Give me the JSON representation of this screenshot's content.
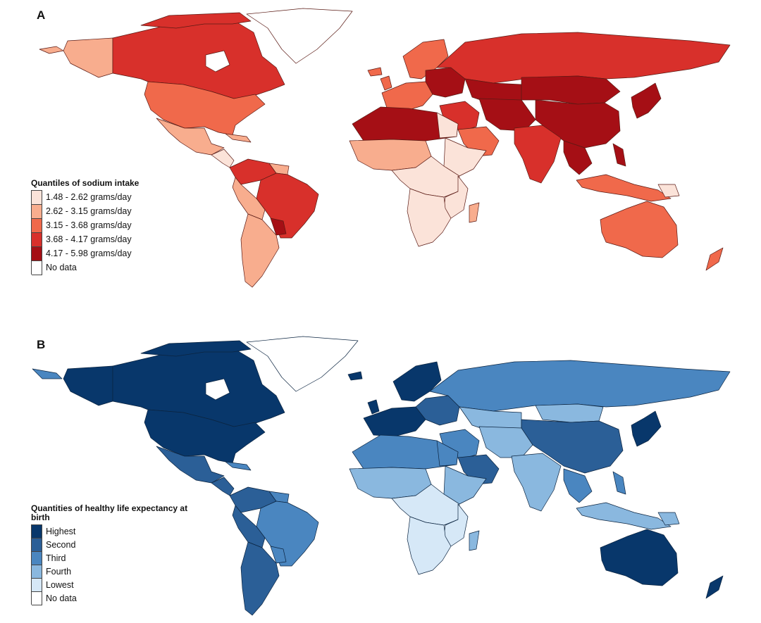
{
  "panel_a": {
    "label": "A",
    "legend": {
      "title": "Quantiles of sodium intake",
      "items": [
        {
          "label": "1.48 - 2.62 grams/day",
          "color": "#fbe3d9"
        },
        {
          "label": "2.62 - 3.15 grams/day",
          "color": "#f8ad8e"
        },
        {
          "label": "3.15 - 3.68 grams/day",
          "color": "#f0694b"
        },
        {
          "label": "3.68 - 4.17 grams/day",
          "color": "#d8302b"
        },
        {
          "label": "4.17 - 5.98 grams/day",
          "color": "#a50f15"
        },
        {
          "label": "No data",
          "color": "#ffffff"
        }
      ]
    }
  },
  "panel_b": {
    "label": "B",
    "legend": {
      "title": "Quantities of healthy life expectancy at birth",
      "items": [
        {
          "label": "Highest",
          "color": "#08376b"
        },
        {
          "label": "Second",
          "color": "#2b5f97"
        },
        {
          "label": "Third",
          "color": "#4a86c0"
        },
        {
          "label": "Fourth",
          "color": "#8ab8df"
        },
        {
          "label": "Lowest",
          "color": "#d6e8f7"
        },
        {
          "label": "No data",
          "color": "#ffffff"
        }
      ]
    }
  }
}
